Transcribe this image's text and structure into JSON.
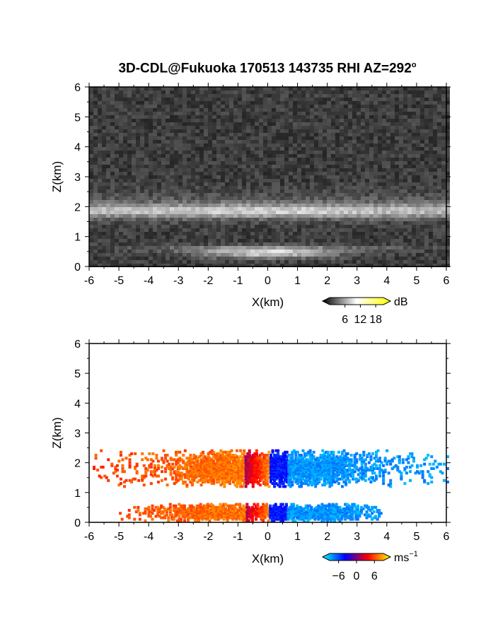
{
  "title": {
    "text": "3D-CDL@Fukuoka 170513 143735 RHI AZ=292",
    "superscript": "o"
  },
  "chart_data": [
    {
      "type": "heatmap",
      "variable": "backscatter",
      "xlabel": "X(km)",
      "ylabel": "Z(km)",
      "xlim": [
        -6,
        6
      ],
      "ylim": [
        0,
        6
      ],
      "x_ticks": [
        "-6",
        "-5",
        "-4",
        "-3",
        "-2",
        "-1",
        "0",
        "1",
        "2",
        "3",
        "4",
        "5",
        "6"
      ],
      "y_ticks": [
        "0",
        "1",
        "2",
        "3",
        "4",
        "5",
        "6"
      ],
      "layers": [
        {
          "z_center": 1.85,
          "intensity": "bright"
        },
        {
          "z_center": 0.45,
          "intensity": "bright near x=0"
        }
      ],
      "colorbar": {
        "unit": "dB",
        "tick_labels": [
          "6",
          "12",
          "18"
        ],
        "ticks": [
          6,
          12,
          18
        ],
        "range": [
          0,
          21
        ],
        "colors": [
          "#000000",
          "#ffffff",
          "#ffff00"
        ]
      }
    },
    {
      "type": "heatmap",
      "variable": "radial velocity",
      "xlabel": "X(km)",
      "ylabel": "Z(km)",
      "xlim": [
        -6,
        6
      ],
      "ylim": [
        0,
        6
      ],
      "x_ticks": [
        "-6",
        "-5",
        "-4",
        "-3",
        "-2",
        "-1",
        "0",
        "1",
        "2",
        "3",
        "4",
        "5",
        "6"
      ],
      "y_ticks": [
        "0",
        "1",
        "2",
        "3",
        "4",
        "5",
        "6"
      ],
      "layers": [
        {
          "z_range": [
            1.2,
            2.5
          ],
          "x_range": [
            -6,
            6
          ]
        },
        {
          "z_range": [
            0.05,
            0.7
          ],
          "x_range": [
            -5,
            3.8
          ]
        }
      ],
      "colorbar": {
        "unit": "ms",
        "unit_exponent": "−1",
        "tick_labels": [
          "−6",
          "0",
          "6"
        ],
        "ticks": [
          -6,
          0,
          6
        ],
        "range": [
          -9,
          9
        ],
        "colors": [
          "#00ffff",
          "#0000ff",
          "#ff0000",
          "#ffff00"
        ]
      }
    }
  ]
}
